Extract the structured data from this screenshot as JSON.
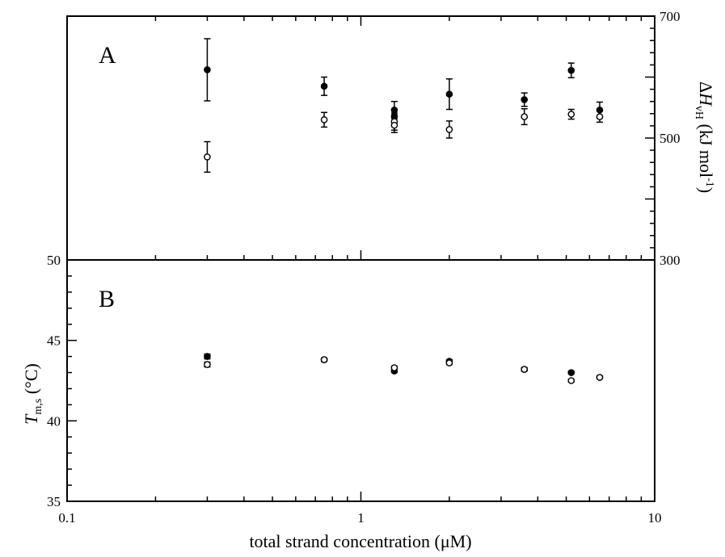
{
  "chart_data": [
    {
      "panel": "A",
      "type": "scatter",
      "panel_label": "A",
      "xscale": "log",
      "xlim": [
        0.1,
        10
      ],
      "ylim": [
        300,
        700
      ],
      "y_axis_side": "right",
      "yticks": [
        300,
        500,
        700
      ],
      "ylabel_parts": {
        "delta": "Δ",
        "var": "H",
        "sub": "vH",
        "unit_pre": " (kJ mol",
        "sup": "-1",
        "unit_post": ")"
      },
      "grid": false,
      "series": [
        {
          "marker": "filled-circle",
          "points": [
            {
              "x": 0.3,
              "y": 612,
              "err": 51
            },
            {
              "x": 0.75,
              "y": 585,
              "err": 15
            },
            {
              "x": 1.3,
              "y": 546,
              "err": 14
            },
            {
              "x": 1.3,
              "y": 536,
              "err": 10
            },
            {
              "x": 2.0,
              "y": 572,
              "err": 25
            },
            {
              "x": 3.6,
              "y": 563,
              "err": 11
            },
            {
              "x": 5.2,
              "y": 611,
              "err": 12
            },
            {
              "x": 6.5,
              "y": 546,
              "err": 13
            }
          ]
        },
        {
          "marker": "open-circle",
          "points": [
            {
              "x": 0.3,
              "y": 469,
              "err": 25
            },
            {
              "x": 0.75,
              "y": 530,
              "err": 12
            },
            {
              "x": 1.3,
              "y": 527,
              "err": 14
            },
            {
              "x": 1.3,
              "y": 521,
              "err": 12
            },
            {
              "x": 2.0,
              "y": 514,
              "err": 14
            },
            {
              "x": 3.6,
              "y": 535,
              "err": 13
            },
            {
              "x": 5.2,
              "y": 539,
              "err": 8
            },
            {
              "x": 6.5,
              "y": 535,
              "err": 9
            }
          ]
        }
      ]
    },
    {
      "panel": "B",
      "type": "scatter",
      "panel_label": "B",
      "xscale": "log",
      "xlim": [
        0.1,
        10
      ],
      "xticks": [
        0.1,
        1,
        10
      ],
      "xtick_labels": [
        "0.1",
        "1",
        "10"
      ],
      "xlabel": "total strand concentration (μM)",
      "ylim": [
        35,
        50
      ],
      "y_axis_side": "left",
      "yticks": [
        35,
        40,
        45,
        50
      ],
      "ylabel_parts": {
        "var": "T",
        "sub": "m,s",
        "unit": " (°C)"
      },
      "grid": false,
      "series": [
        {
          "marker": "filled-circle",
          "points": [
            {
              "x": 0.3,
              "y": 44.0,
              "err": 0.15
            },
            {
              "x": 0.75,
              "y": 43.8,
              "err": 0.1
            },
            {
              "x": 1.3,
              "y": 43.1,
              "err": 0.1
            },
            {
              "x": 2.0,
              "y": 43.7,
              "err": 0.1
            },
            {
              "x": 3.6,
              "y": 43.2,
              "err": 0.1
            },
            {
              "x": 5.2,
              "y": 43.0,
              "err": 0.08
            },
            {
              "x": 6.5,
              "y": 42.7,
              "err": 0.08
            }
          ]
        },
        {
          "marker": "open-circle",
          "points": [
            {
              "x": 0.3,
              "y": 43.5,
              "err": 0.15
            },
            {
              "x": 0.75,
              "y": 43.8,
              "err": 0.1
            },
            {
              "x": 1.3,
              "y": 43.3,
              "err": 0.1
            },
            {
              "x": 2.0,
              "y": 43.6,
              "err": 0.1
            },
            {
              "x": 3.6,
              "y": 43.2,
              "err": 0.1
            },
            {
              "x": 5.2,
              "y": 42.5,
              "err": 0.08
            },
            {
              "x": 6.5,
              "y": 42.7,
              "err": 0.08
            }
          ]
        }
      ]
    }
  ]
}
